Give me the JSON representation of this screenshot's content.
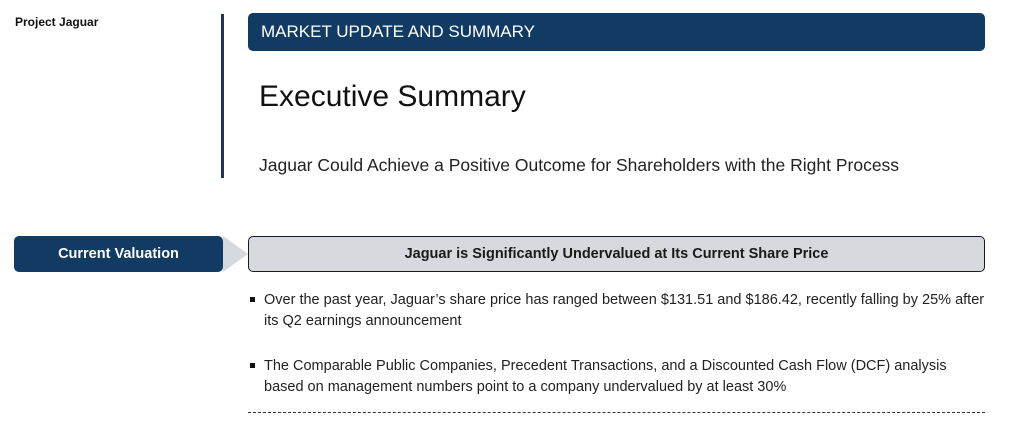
{
  "header": {
    "project_label": "Project Jaguar",
    "section_banner": "MARKET UPDATE AND SUMMARY",
    "page_title": "Executive Summary",
    "subtitle": "Jaguar Could Achieve a Positive Outcome for Shareholders with the Right Process"
  },
  "section": {
    "tag": "Current Valuation",
    "headline": "Jaguar is Significantly Undervalued at Its Current Share Price"
  },
  "bullets": [
    "Over the past year, Jaguar’s share price has ranged between $131.51 and $186.42, recently falling by 25% after its Q2 earnings announcement",
    "The Comparable Public Companies, Precedent Transactions, and a Discounted Cash Flow (DCF) analysis based on management numbers point to a company undervalued by at least 30%"
  ],
  "colors": {
    "navy": "#123b63",
    "headline_fill": "#d6d9de"
  }
}
